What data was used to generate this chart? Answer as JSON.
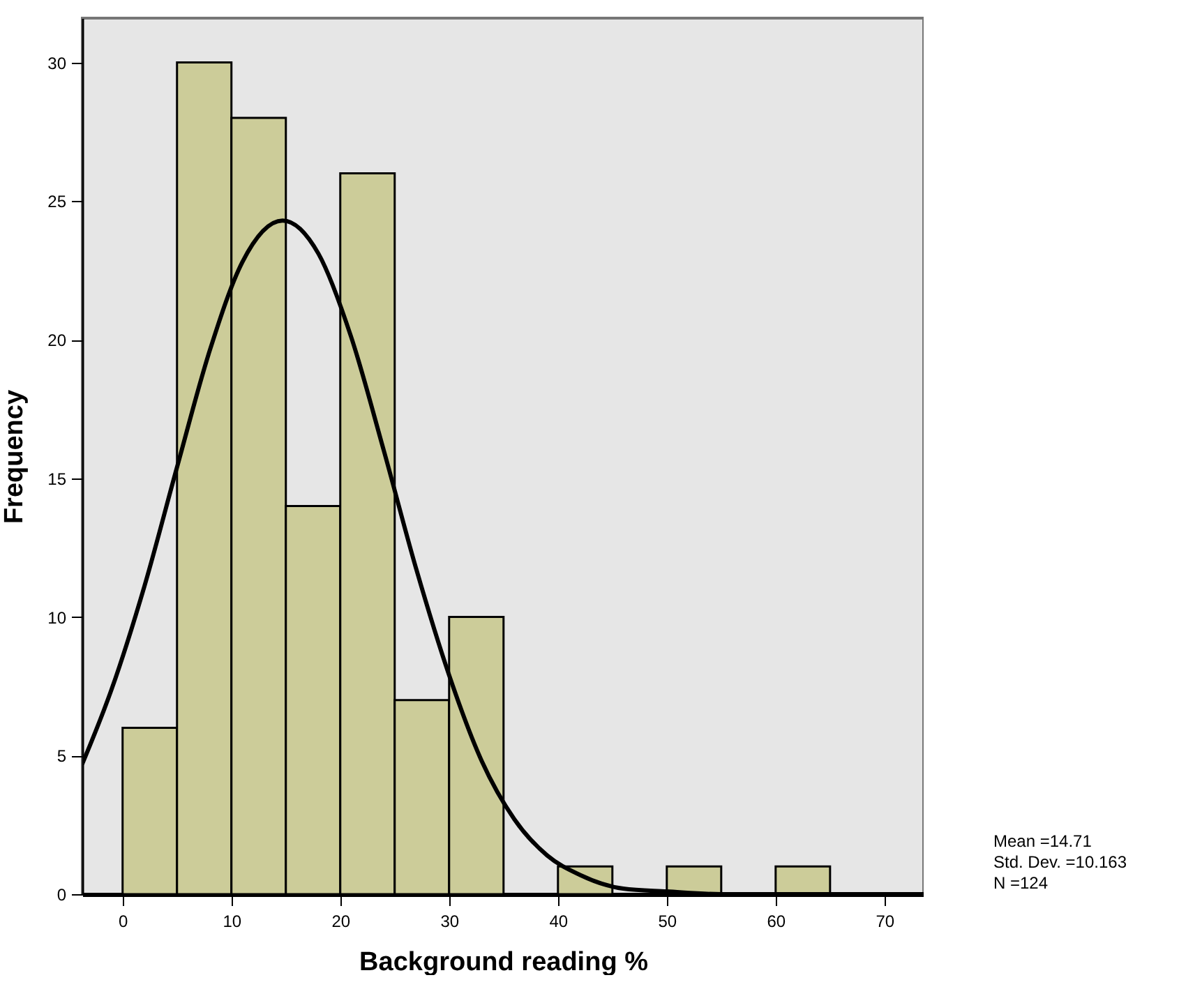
{
  "chart_data": {
    "type": "histogram",
    "xlabel": "Background reading %",
    "ylabel": "Frequency",
    "bins": [
      0,
      5,
      10,
      15,
      20,
      25,
      30,
      35,
      40,
      45,
      50,
      55,
      60,
      65
    ],
    "values": [
      6,
      30,
      28,
      14,
      26,
      7,
      10,
      0,
      1,
      0,
      1,
      0,
      1
    ],
    "color": "#cccc99",
    "series": [
      {
        "type": "line",
        "color": "#000000",
        "x": [
          -3.7,
          -1,
          2,
          5,
          8,
          11,
          14.7,
          18,
          21,
          24,
          27,
          30,
          33,
          36,
          39,
          42,
          46,
          50,
          55,
          73.6
        ],
        "values": [
          4.7,
          7.4,
          11.1,
          15.4,
          19.6,
          22.8,
          24.3,
          23.1,
          20.1,
          16.0,
          11.7,
          7.9,
          4.8,
          2.7,
          1.4,
          0.7,
          0.2,
          0.1,
          0,
          0
        ]
      }
    ],
    "xlim": [
      -3.7,
      73.6
    ],
    "xticks": [
      0,
      10,
      20,
      30,
      40,
      50,
      60,
      70
    ],
    "ylim": [
      0,
      31.6
    ],
    "yticks": [
      0,
      5,
      10,
      15,
      20,
      25,
      30
    ],
    "grid": false,
    "annotations": [
      "Mean =14.71",
      "Std. Dev. =10.163",
      "N =124"
    ]
  }
}
